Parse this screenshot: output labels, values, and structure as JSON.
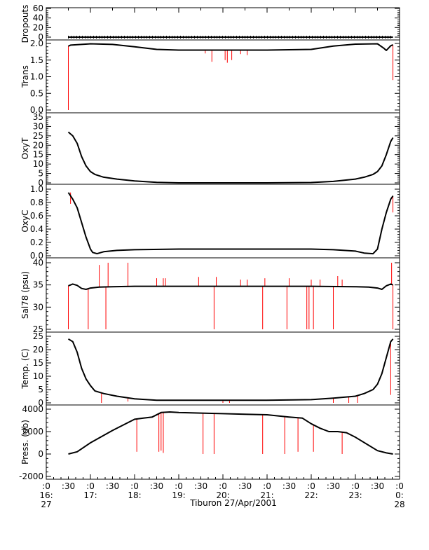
{
  "colors": {
    "axis": "#000000",
    "data": "#000000",
    "spike": "#ff0000"
  },
  "chart_data": {
    "type": "line",
    "x_axis": {
      "title": "Tiburon 27/Apr/2001",
      "range_hours": [
        16.0,
        24.0
      ],
      "ticks": [
        {
          "hour": 16.0,
          "label": [
            ":0",
            "16:",
            "27"
          ]
        },
        {
          "hour": 16.5,
          "label": [
            ":30"
          ]
        },
        {
          "hour": 17.0,
          "label": [
            ":0",
            "17:"
          ]
        },
        {
          "hour": 17.5,
          "label": [
            ":30"
          ]
        },
        {
          "hour": 18.0,
          "label": [
            ":0",
            "18:"
          ]
        },
        {
          "hour": 18.5,
          "label": [
            ":30"
          ]
        },
        {
          "hour": 19.0,
          "label": [
            ":0",
            "19:"
          ]
        },
        {
          "hour": 19.5,
          "label": [
            ":30"
          ]
        },
        {
          "hour": 20.0,
          "label": [
            ":0",
            "20:"
          ]
        },
        {
          "hour": 20.5,
          "label": [
            ":30"
          ]
        },
        {
          "hour": 21.0,
          "label": [
            ":0",
            "21:"
          ]
        },
        {
          "hour": 21.5,
          "label": [
            ":30"
          ]
        },
        {
          "hour": 22.0,
          "label": [
            ":0",
            "22:"
          ]
        },
        {
          "hour": 22.5,
          "label": [
            ":30"
          ]
        },
        {
          "hour": 23.0,
          "label": [
            ":0",
            "23:"
          ]
        },
        {
          "hour": 23.5,
          "label": [
            ":30"
          ]
        },
        {
          "hour": 24.0,
          "label": [
            ":0",
            "0:",
            "28"
          ]
        }
      ]
    },
    "panels": [
      {
        "ylabel": "Dropouts",
        "ylim": [
          0,
          60
        ],
        "yticks": [
          0,
          20,
          40,
          60
        ],
        "yticklabels": [
          "0",
          "20",
          "40",
          "60"
        ],
        "series": {
          "x": [
            16.5,
            17.0,
            18.0,
            19.0,
            20.0,
            21.0,
            22.0,
            23.0,
            23.85
          ],
          "y": [
            0,
            0,
            0,
            0,
            0,
            0,
            0,
            0,
            0
          ]
        },
        "spikes": []
      },
      {
        "ylabel": "Trans",
        "ylim": [
          0,
          2.0
        ],
        "yticks": [
          0.0,
          0.5,
          1.0,
          1.5,
          2.0
        ],
        "yticklabels": [
          "0.0",
          "0.5",
          "1.0",
          "1.5",
          "2.0"
        ],
        "series": {
          "x": [
            16.5,
            16.55,
            17.0,
            17.5,
            18.0,
            18.5,
            19.0,
            20.0,
            21.0,
            22.0,
            22.5,
            23.0,
            23.5,
            23.65,
            23.7,
            23.8,
            23.85
          ],
          "y": [
            1.92,
            1.95,
            1.99,
            1.97,
            1.9,
            1.82,
            1.8,
            1.8,
            1.8,
            1.82,
            1.92,
            1.98,
            1.99,
            1.85,
            1.79,
            1.93,
            1.96
          ]
        },
        "spikes": [
          {
            "x": 16.5,
            "y0": 1.92,
            "y1": 0.0
          },
          {
            "x": 19.6,
            "y0": 1.8,
            "y1": 1.7
          },
          {
            "x": 19.75,
            "y0": 1.8,
            "y1": 1.45
          },
          {
            "x": 20.05,
            "y0": 1.8,
            "y1": 1.5
          },
          {
            "x": 20.1,
            "y0": 1.8,
            "y1": 1.42
          },
          {
            "x": 20.2,
            "y0": 1.8,
            "y1": 1.5
          },
          {
            "x": 20.4,
            "y0": 1.8,
            "y1": 1.68
          },
          {
            "x": 20.55,
            "y0": 1.8,
            "y1": 1.65
          },
          {
            "x": 23.85,
            "y0": 1.96,
            "y1": 0.9
          }
        ]
      },
      {
        "ylabel": "OxyT",
        "ylim": [
          0,
          35
        ],
        "yticks": [
          0,
          5,
          10,
          15,
          20,
          25,
          30,
          35
        ],
        "yticklabels": [
          "0",
          "5",
          "10",
          "15",
          "20",
          "25",
          "30",
          "35"
        ],
        "series": {
          "x": [
            16.5,
            16.6,
            16.7,
            16.8,
            16.9,
            17.0,
            17.1,
            17.3,
            17.6,
            18.0,
            18.5,
            19.0,
            21.0,
            22.0,
            22.5,
            23.0,
            23.2,
            23.4,
            23.5,
            23.6,
            23.7,
            23.8,
            23.85
          ],
          "y": [
            27,
            25,
            21,
            14,
            9,
            6,
            4.5,
            3,
            2,
            1,
            0.3,
            0,
            0,
            0.2,
            0.8,
            2,
            3,
            4.5,
            6,
            9,
            15,
            22,
            24
          ]
        },
        "spikes": []
      },
      {
        "ylabel": "OxyC",
        "ylim": [
          0.0,
          1.0
        ],
        "yticks": [
          0.0,
          0.2,
          0.4,
          0.6,
          0.8,
          1.0
        ],
        "yticklabels": [
          "0.0",
          "0.2",
          "0.4",
          "0.6",
          "0.8",
          "1.0"
        ],
        "series": {
          "x": [
            16.5,
            16.6,
            16.7,
            16.8,
            16.9,
            17.0,
            17.05,
            17.15,
            17.3,
            17.6,
            18.0,
            19.0,
            22.0,
            22.5,
            23.0,
            23.2,
            23.4,
            23.5,
            23.6,
            23.7,
            23.8,
            23.85
          ],
          "y": [
            0.95,
            0.85,
            0.72,
            0.5,
            0.28,
            0.1,
            0.05,
            0.03,
            0.06,
            0.08,
            0.09,
            0.1,
            0.1,
            0.09,
            0.07,
            0.04,
            0.03,
            0.1,
            0.4,
            0.65,
            0.85,
            0.9
          ]
        },
        "spikes": [
          {
            "x": 16.55,
            "y0": 0.95,
            "y1": 0.78
          },
          {
            "x": 23.85,
            "y0": 0.9,
            "y1": 0.65
          }
        ]
      },
      {
        "ylabel": "Sal78 (psu)",
        "ylim": [
          25,
          40
        ],
        "yticks": [
          25,
          30,
          35,
          40
        ],
        "yticklabels": [
          "25",
          "30",
          "35",
          "40"
        ],
        "series": {
          "x": [
            16.5,
            16.6,
            16.7,
            16.8,
            16.9,
            17.0,
            17.2,
            17.5,
            18.0,
            19.0,
            20.0,
            21.0,
            22.0,
            23.0,
            23.3,
            23.5,
            23.6,
            23.7,
            23.8,
            23.85
          ],
          "y": [
            34.8,
            35.2,
            34.9,
            34.2,
            34.0,
            34.3,
            34.5,
            34.6,
            34.7,
            34.7,
            34.7,
            34.7,
            34.7,
            34.6,
            34.5,
            34.3,
            34.0,
            34.8,
            35.2,
            35.0
          ]
        },
        "spikes": [
          {
            "x": 16.5,
            "y0": 34.8,
            "y1": 25.0
          },
          {
            "x": 16.95,
            "y0": 34.2,
            "y1": 25.0
          },
          {
            "x": 17.2,
            "y0": 34.5,
            "y1": 39.5
          },
          {
            "x": 17.35,
            "y0": 34.5,
            "y1": 25.0
          },
          {
            "x": 17.4,
            "y0": 34.5,
            "y1": 40.0
          },
          {
            "x": 17.85,
            "y0": 34.6,
            "y1": 40.0
          },
          {
            "x": 18.5,
            "y0": 34.7,
            "y1": 36.5
          },
          {
            "x": 18.65,
            "y0": 34.7,
            "y1": 36.5
          },
          {
            "x": 18.7,
            "y0": 34.7,
            "y1": 36.5
          },
          {
            "x": 19.45,
            "y0": 34.7,
            "y1": 36.8
          },
          {
            "x": 19.8,
            "y0": 34.7,
            "y1": 25.0
          },
          {
            "x": 19.85,
            "y0": 34.7,
            "y1": 36.8
          },
          {
            "x": 20.4,
            "y0": 34.7,
            "y1": 36.2
          },
          {
            "x": 20.55,
            "y0": 34.7,
            "y1": 36.2
          },
          {
            "x": 20.9,
            "y0": 34.7,
            "y1": 25.0
          },
          {
            "x": 20.95,
            "y0": 34.7,
            "y1": 36.5
          },
          {
            "x": 21.45,
            "y0": 34.7,
            "y1": 25.0
          },
          {
            "x": 21.5,
            "y0": 34.7,
            "y1": 36.5
          },
          {
            "x": 21.9,
            "y0": 34.7,
            "y1": 25.0
          },
          {
            "x": 21.95,
            "y0": 34.7,
            "y1": 25.0
          },
          {
            "x": 22.0,
            "y0": 34.7,
            "y1": 36.2
          },
          {
            "x": 22.05,
            "y0": 34.7,
            "y1": 25.0
          },
          {
            "x": 22.2,
            "y0": 34.7,
            "y1": 36.2
          },
          {
            "x": 22.5,
            "y0": 34.7,
            "y1": 25.0
          },
          {
            "x": 22.6,
            "y0": 34.7,
            "y1": 37.0
          },
          {
            "x": 22.7,
            "y0": 34.7,
            "y1": 36.2
          },
          {
            "x": 23.85,
            "y0": 35.0,
            "y1": 25.0
          },
          {
            "x": 23.82,
            "y0": 35.0,
            "y1": 40.0
          }
        ]
      },
      {
        "ylabel": "Temp. (C)",
        "ylim": [
          0,
          25
        ],
        "yticks": [
          0,
          5,
          10,
          15,
          20,
          25
        ],
        "yticklabels": [
          "0",
          "5",
          "10",
          "15",
          "20",
          "25"
        ],
        "series": {
          "x": [
            16.5,
            16.6,
            16.7,
            16.8,
            16.9,
            17.0,
            17.1,
            17.3,
            17.6,
            18.0,
            18.5,
            19.0,
            21.0,
            22.0,
            22.5,
            23.0,
            23.2,
            23.4,
            23.5,
            23.6,
            23.7,
            23.8,
            23.85
          ],
          "y": [
            24,
            23,
            19,
            13,
            9,
            6.5,
            4.5,
            3.5,
            2.5,
            1.5,
            1,
            1,
            1,
            1.2,
            1.8,
            2.5,
            3.5,
            5,
            7,
            11,
            17,
            23,
            24
          ]
        },
        "spikes": [
          {
            "x": 17.25,
            "y0": 3.5,
            "y1": 0.0
          },
          {
            "x": 17.85,
            "y0": 1.8,
            "y1": 0.5
          },
          {
            "x": 20.0,
            "y0": 1.0,
            "y1": 0.0
          },
          {
            "x": 20.15,
            "y0": 1.0,
            "y1": 0.0
          },
          {
            "x": 22.5,
            "y0": 1.8,
            "y1": 0.0
          },
          {
            "x": 22.85,
            "y0": 2.2,
            "y1": 0.0
          },
          {
            "x": 23.05,
            "y0": 2.5,
            "y1": 0.0
          },
          {
            "x": 23.8,
            "y0": 23.0,
            "y1": 3.0
          }
        ]
      },
      {
        "ylabel": "Press. (db)",
        "ylim": [
          -2000,
          4000
        ],
        "yticks": [
          -2000,
          0,
          2000,
          4000
        ],
        "yticklabels": [
          "-2000",
          "0",
          "2000",
          "4000"
        ],
        "series": {
          "x": [
            16.5,
            16.7,
            17.0,
            17.5,
            18.0,
            18.2,
            18.4,
            18.6,
            18.8,
            19.0,
            19.5,
            20.0,
            20.5,
            21.0,
            21.5,
            21.8,
            22.0,
            22.2,
            22.4,
            22.6,
            22.8,
            23.0,
            23.5,
            23.7,
            23.85
          ],
          "y": [
            0,
            200,
            1000,
            2100,
            3100,
            3200,
            3300,
            3700,
            3750,
            3700,
            3650,
            3600,
            3550,
            3500,
            3300,
            3200,
            2700,
            2300,
            2000,
            2000,
            1900,
            1500,
            300,
            100,
            0
          ]
        },
        "spikes": [
          {
            "x": 18.05,
            "y0": 3150,
            "y1": 200
          },
          {
            "x": 18.55,
            "y0": 3600,
            "y1": 200
          },
          {
            "x": 18.6,
            "y0": 3700,
            "y1": 300
          },
          {
            "x": 18.65,
            "y0": 3720,
            "y1": 100
          },
          {
            "x": 19.55,
            "y0": 3650,
            "y1": 0
          },
          {
            "x": 19.8,
            "y0": 3640,
            "y1": 0
          },
          {
            "x": 20.9,
            "y0": 3510,
            "y1": 0
          },
          {
            "x": 21.4,
            "y0": 3350,
            "y1": 0
          },
          {
            "x": 21.7,
            "y0": 3250,
            "y1": 200
          },
          {
            "x": 22.05,
            "y0": 2650,
            "y1": 200
          },
          {
            "x": 22.7,
            "y0": 1950,
            "y1": 0
          }
        ]
      }
    ]
  }
}
